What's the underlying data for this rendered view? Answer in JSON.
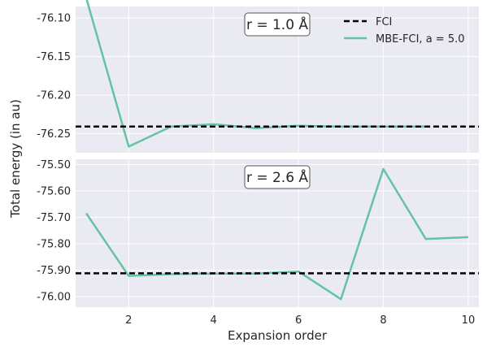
{
  "chart_data": [
    {
      "type": "line",
      "annotation": "r = 1.0 Å",
      "ylabel": "Total energy (in au)",
      "ylim": [
        -76.275,
        -76.085
      ],
      "yticks": [
        -76.1,
        -76.15,
        -76.2,
        -76.25
      ],
      "ytick_labels": [
        "-76.10",
        "-76.15",
        "-76.20",
        "-76.25"
      ],
      "xlim": [
        0.75,
        10.25
      ],
      "grid": true,
      "legend_position": "top-right",
      "reference": {
        "name": "FCI",
        "value": -76.241,
        "style": "dashed",
        "color": "#000000"
      },
      "series": [
        {
          "name": "MBE-FCI, a = 5.0",
          "color": "#66c2a5",
          "x": [
            1,
            2,
            3,
            4,
            5,
            6,
            7,
            8,
            9
          ],
          "values": [
            -76.074,
            -76.267,
            -76.241,
            -76.238,
            -76.243,
            -76.24,
            -76.241,
            -76.241,
            -76.241
          ]
        }
      ]
    },
    {
      "type": "line",
      "annotation": "r = 2.6 Å",
      "ylim": [
        -76.04,
        -75.48
      ],
      "yticks": [
        -75.5,
        -75.6,
        -75.7,
        -75.8,
        -75.9,
        -76.0
      ],
      "ytick_labels": [
        "-75.50",
        "-75.60",
        "-75.70",
        "-75.80",
        "-75.90",
        "-76.00"
      ],
      "xlim": [
        0.75,
        10.25
      ],
      "xticks": [
        2,
        4,
        6,
        8,
        10
      ],
      "xtick_labels": [
        "2",
        "4",
        "6",
        "8",
        "10"
      ],
      "xlabel": "Expansion order",
      "grid": true,
      "reference": {
        "name": "FCI",
        "value": -75.912,
        "style": "dashed",
        "color": "#000000"
      },
      "series": [
        {
          "name": "MBE-FCI, a = 5.0",
          "color": "#66c2a5",
          "x": [
            1,
            2,
            3,
            4,
            5,
            6,
            7,
            8,
            9,
            10
          ],
          "values": [
            -75.685,
            -75.922,
            -75.915,
            -75.913,
            -75.913,
            -75.905,
            -76.01,
            -75.517,
            -75.782,
            -75.775
          ]
        }
      ]
    }
  ],
  "legend": {
    "entries": [
      {
        "label": "FCI",
        "color": "#000000",
        "style": "dashed"
      },
      {
        "label": "MBE-FCI, a = 5.0",
        "color": "#66c2a5",
        "style": "solid"
      }
    ]
  },
  "colors": {
    "axes_background": "#eaeaf2",
    "grid": "#ffffff",
    "series": "#66c2a5",
    "reference": "#000000"
  }
}
